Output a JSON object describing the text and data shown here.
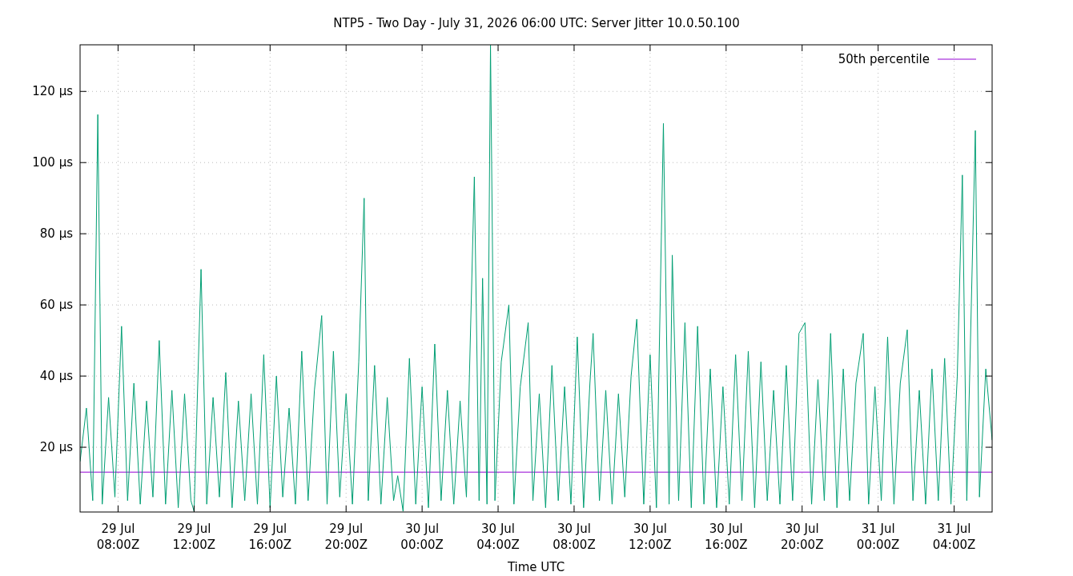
{
  "chart_data": {
    "type": "line",
    "title": "NTP5 - Two Day - July 31, 2026 06:00 UTC: Server Jitter 10.0.50.100",
    "xlabel": "Time UTC",
    "xlim": [
      "2026-07-29T06:00",
      "2026-07-31T06:00"
    ],
    "xticks": [
      {
        "value": "2026-07-29T08:00",
        "label": "29 Jul\n08:00Z"
      },
      {
        "value": "2026-07-29T12:00",
        "label": "29 Jul\n12:00Z"
      },
      {
        "value": "2026-07-29T16:00",
        "label": "29 Jul\n16:00Z"
      },
      {
        "value": "2026-07-29T20:00",
        "label": "29 Jul\n20:00Z"
      },
      {
        "value": "2026-07-30T00:00",
        "label": "30 Jul\n00:00Z"
      },
      {
        "value": "2026-07-30T04:00",
        "label": "30 Jul\n04:00Z"
      },
      {
        "value": "2026-07-30T08:00",
        "label": "30 Jul\n08:00Z"
      },
      {
        "value": "2026-07-30T12:00",
        "label": "30 Jul\n12:00Z"
      },
      {
        "value": "2026-07-30T16:00",
        "label": "30 Jul\n16:00Z"
      },
      {
        "value": "2026-07-30T20:00",
        "label": "30 Jul\n20:00Z"
      },
      {
        "value": "2026-07-31T00:00",
        "label": "31 Jul\n00:00Z"
      },
      {
        "value": "2026-07-31T04:00",
        "label": "31 Jul\n04:00Z"
      }
    ],
    "ylim": [
      1.8,
      133.1
    ],
    "yticks": [
      {
        "value": 20,
        "label": "20 µs"
      },
      {
        "value": 40,
        "label": "40 µs"
      },
      {
        "value": 60,
        "label": "60 µs"
      },
      {
        "value": 80,
        "label": "80 µs"
      },
      {
        "value": 100,
        "label": "100 µs"
      },
      {
        "value": 120,
        "label": "120 µs"
      }
    ],
    "grid": true,
    "legend": "top right",
    "series": [
      {
        "name": "50th percentile",
        "color": "#9400d3",
        "x": [
          "2026-07-29T06:00",
          "2026-07-31T06:00"
        ],
        "values": [
          13,
          13
        ]
      },
      {
        "color": "#009e73",
        "x": [
          "2026-07-29T06:00",
          "2026-07-29T06:20",
          "2026-07-29T06:40",
          "2026-07-29T06:56",
          "2026-07-29T07:10",
          "2026-07-29T07:30",
          "2026-07-29T07:50",
          "2026-07-29T08:11",
          "2026-07-29T08:30",
          "2026-07-29T08:50",
          "2026-07-29T09:10",
          "2026-07-29T09:30",
          "2026-07-29T09:50",
          "2026-07-29T10:10",
          "2026-07-29T10:30",
          "2026-07-29T10:50",
          "2026-07-29T11:10",
          "2026-07-29T11:30",
          "2026-07-29T11:50",
          "2026-07-29T12:00",
          "2026-07-29T12:22",
          "2026-07-29T12:40",
          "2026-07-29T13:00",
          "2026-07-29T13:20",
          "2026-07-29T13:40",
          "2026-07-29T14:00",
          "2026-07-29T14:20",
          "2026-07-29T14:40",
          "2026-07-29T15:00",
          "2026-07-29T15:20",
          "2026-07-29T15:40",
          "2026-07-29T16:00",
          "2026-07-29T16:20",
          "2026-07-29T16:40",
          "2026-07-29T17:00",
          "2026-07-29T17:20",
          "2026-07-29T17:40",
          "2026-07-29T18:00",
          "2026-07-29T18:20",
          "2026-07-29T18:43",
          "2026-07-29T19:00",
          "2026-07-29T19:20",
          "2026-07-29T19:40",
          "2026-07-29T20:00",
          "2026-07-29T20:20",
          "2026-07-29T20:40",
          "2026-07-29T20:57",
          "2026-07-29T21:10",
          "2026-07-29T21:30",
          "2026-07-29T21:50",
          "2026-07-29T22:10",
          "2026-07-29T22:30",
          "2026-07-29T22:43",
          "2026-07-29T23:00",
          "2026-07-29T23:20",
          "2026-07-29T23:40",
          "2026-07-30T00:00",
          "2026-07-30T00:20",
          "2026-07-30T00:40",
          "2026-07-30T01:00",
          "2026-07-30T01:20",
          "2026-07-30T01:40",
          "2026-07-30T02:00",
          "2026-07-30T02:20",
          "2026-07-30T02:45",
          "2026-07-30T03:00",
          "2026-07-30T03:11",
          "2026-07-30T03:25",
          "2026-07-30T03:36",
          "2026-07-30T03:50",
          "2026-07-30T04:10",
          "2026-07-30T04:34",
          "2026-07-30T04:50",
          "2026-07-30T05:10",
          "2026-07-30T05:35",
          "2026-07-30T05:50",
          "2026-07-30T06:10",
          "2026-07-30T06:30",
          "2026-07-30T06:50",
          "2026-07-30T07:10",
          "2026-07-30T07:30",
          "2026-07-30T07:50",
          "2026-07-30T08:10",
          "2026-07-30T08:30",
          "2026-07-30T08:50",
          "2026-07-30T09:00",
          "2026-07-30T09:20",
          "2026-07-30T09:40",
          "2026-07-30T10:00",
          "2026-07-30T10:20",
          "2026-07-30T10:40",
          "2026-07-30T11:00",
          "2026-07-30T11:18",
          "2026-07-30T11:40",
          "2026-07-30T12:00",
          "2026-07-30T12:20",
          "2026-07-30T12:42",
          "2026-07-30T13:00",
          "2026-07-30T13:10",
          "2026-07-30T13:30",
          "2026-07-30T13:50",
          "2026-07-30T14:10",
          "2026-07-30T14:30",
          "2026-07-30T14:50",
          "2026-07-30T15:10",
          "2026-07-30T15:30",
          "2026-07-30T15:50",
          "2026-07-30T16:10",
          "2026-07-30T16:30",
          "2026-07-30T16:50",
          "2026-07-30T17:10",
          "2026-07-30T17:30",
          "2026-07-30T17:50",
          "2026-07-30T18:10",
          "2026-07-30T18:30",
          "2026-07-30T18:50",
          "2026-07-30T19:10",
          "2026-07-30T19:30",
          "2026-07-30T19:50",
          "2026-07-30T20:09",
          "2026-07-30T20:30",
          "2026-07-30T20:50",
          "2026-07-30T21:10",
          "2026-07-30T21:30",
          "2026-07-30T21:50",
          "2026-07-30T22:10",
          "2026-07-30T22:30",
          "2026-07-30T22:50",
          "2026-07-30T23:13",
          "2026-07-30T23:30",
          "2026-07-30T23:50",
          "2026-07-31T00:10",
          "2026-07-31T00:30",
          "2026-07-31T00:50",
          "2026-07-31T01:10",
          "2026-07-31T01:32",
          "2026-07-31T01:50",
          "2026-07-31T02:10",
          "2026-07-31T02:30",
          "2026-07-31T02:50",
          "2026-07-31T03:10",
          "2026-07-31T03:30",
          "2026-07-31T03:50",
          "2026-07-31T04:10",
          "2026-07-31T04:26",
          "2026-07-31T04:40",
          "2026-07-31T05:07",
          "2026-07-31T05:20",
          "2026-07-31T05:40",
          "2026-07-31T06:00"
        ],
        "values": [
          16,
          31,
          5,
          113.5,
          4,
          34,
          6,
          54,
          5,
          38,
          4,
          33,
          6,
          50,
          4,
          36,
          3,
          35,
          5,
          2,
          70,
          4,
          34,
          6,
          41,
          3,
          33,
          5,
          35,
          4,
          46,
          3,
          40,
          6,
          31,
          4,
          47,
          5,
          36,
          57,
          4,
          47,
          6,
          35,
          4,
          44,
          90,
          5,
          43,
          4,
          34,
          5,
          12,
          2,
          45,
          4,
          37,
          3,
          49,
          5,
          36,
          4,
          33,
          6,
          96,
          5,
          67.5,
          4,
          133,
          5,
          44,
          60,
          4,
          37,
          55,
          5,
          35,
          3,
          43,
          5,
          37,
          4,
          51,
          3,
          38,
          52,
          5,
          36,
          4,
          35,
          6,
          40,
          56,
          4,
          46,
          3,
          111,
          4,
          74,
          5,
          55,
          3,
          54,
          4,
          42,
          3,
          37,
          4,
          46,
          5,
          47,
          3,
          44,
          5,
          36,
          4,
          43,
          5,
          52,
          55,
          4,
          39,
          5,
          52,
          3,
          42,
          5,
          38,
          52,
          4,
          37,
          5,
          51,
          4,
          38,
          53,
          5,
          36,
          4,
          42,
          5,
          45,
          4,
          40,
          96.5,
          5,
          109,
          6,
          42,
          22
        ]
      }
    ]
  }
}
